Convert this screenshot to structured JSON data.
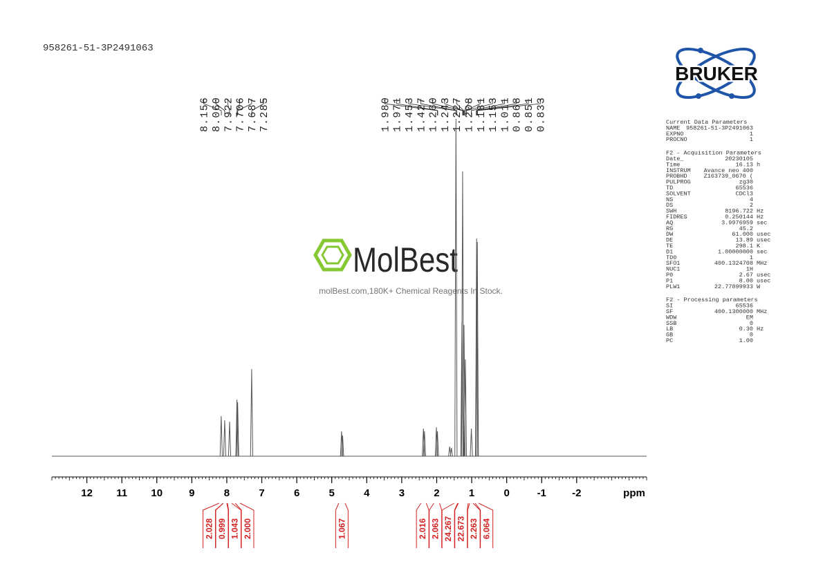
{
  "title": "958261-51-3P2491063",
  "logo": "BRUKER",
  "watermark": {
    "brand": "MolBest",
    "caption": "molBest.com,180K+ Chemical Reagents In Stock."
  },
  "chart_data": {
    "type": "nmr",
    "x_label": "ppm",
    "xlim": [
      13,
      -4
    ],
    "xticks": [
      12,
      11,
      10,
      9,
      8,
      7,
      6,
      5,
      4,
      3,
      2,
      1,
      0,
      -1,
      -2
    ],
    "ylim": [
      0,
      500
    ],
    "color": "#555555",
    "x": [
      8.16,
      8.06,
      7.92,
      7.71,
      7.69,
      7.29,
      4.72,
      4.69,
      2.38,
      2.35,
      2.01,
      1.98,
      1.63,
      1.58,
      1.45,
      1.28,
      1.26,
      1.22,
      1.18,
      1.01,
      0.86,
      0.84
    ],
    "values": [
      58,
      52,
      50,
      82,
      78,
      126,
      36,
      30,
      40,
      36,
      42,
      36,
      14,
      12,
      488,
      195,
      412,
      190,
      140,
      40,
      315,
      310
    ],
    "peak_labels": [
      {
        "value": 8.156,
        "label": "8.156"
      },
      {
        "value": 8.06,
        "label": "8.060"
      },
      {
        "value": 7.922,
        "label": "7.922"
      },
      {
        "value": 7.706,
        "label": "7.706"
      },
      {
        "value": 7.687,
        "label": "7.687"
      },
      {
        "value": 7.285,
        "label": "7.285"
      },
      {
        "value": 1.98,
        "label": "1.980"
      },
      {
        "value": 1.971,
        "label": "1.971"
      },
      {
        "value": 1.453,
        "label": "1.453"
      },
      {
        "value": 1.427,
        "label": "1.427"
      },
      {
        "value": 1.26,
        "label": "1.260"
      },
      {
        "value": 1.243,
        "label": "1.243"
      },
      {
        "value": 1.227,
        "label": "1.227"
      },
      {
        "value": 1.208,
        "label": "1.208"
      },
      {
        "value": 1.181,
        "label": "1.181"
      },
      {
        "value": 1.153,
        "label": "1.153"
      },
      {
        "value": 1.011,
        "label": "1.011"
      },
      {
        "value": 0.868,
        "label": "0.868"
      },
      {
        "value": 0.851,
        "label": "0.851"
      },
      {
        "value": 0.833,
        "label": "0.833"
      }
    ],
    "integral_color": "#d42020",
    "integrals": [
      {
        "value": 2.028,
        "label": "2.028",
        "range": [
          8.22,
          8.1
        ]
      },
      {
        "value": 0.999,
        "label": "0.999",
        "range": [
          8.1,
          8.0
        ]
      },
      {
        "value": 1.043,
        "label": "1.043",
        "range": [
          7.98,
          7.86
        ]
      },
      {
        "value": 2,
        "label": "2.000",
        "range": [
          7.76,
          7.62
        ]
      },
      {
        "value": 1.067,
        "label": "1.067",
        "range": [
          4.8,
          4.62
        ]
      },
      {
        "value": 2.016,
        "label": "2.016",
        "range": [
          2.45,
          2.3
        ]
      },
      {
        "value": 2.063,
        "label": "2.063",
        "range": [
          2.08,
          1.92
        ]
      },
      {
        "value": 24.267,
        "label": "24.267",
        "range": [
          1.5,
          1.4
        ]
      },
      {
        "value": 22.673,
        "label": "22.673",
        "range": [
          1.38,
          1.1
        ]
      },
      {
        "value": 2.263,
        "label": "2.263",
        "range": [
          1.06,
          0.96
        ]
      },
      {
        "value": 6.064,
        "label": "6.064",
        "range": [
          0.9,
          0.8
        ]
      }
    ]
  },
  "parameters": [
    {
      "title": "Current Data Parameters",
      "rows": [
        [
          "NAME",
          "958261-51-3P2491063"
        ],
        [
          "EXPNO",
          "1"
        ],
        [
          "PROCNO",
          "1"
        ]
      ]
    },
    {
      "title": "F2 - Acquisition Parameters",
      "rows": [
        [
          "Date_",
          "20230105"
        ],
        [
          "Time",
          "16.13",
          "h"
        ],
        [
          "INSTRUM",
          "Avance neo 400"
        ],
        [
          "PROBHD",
          "Z163739_0670 ("
        ],
        [
          "PULPROG",
          "zg30"
        ],
        [
          "TD",
          "65536"
        ],
        [
          "SOLVENT",
          "CDCl3"
        ],
        [
          "NS",
          "4"
        ],
        [
          "DS",
          "2"
        ],
        [
          "SWH",
          "8196.722",
          "Hz"
        ],
        [
          "FIDRES",
          "0.250144",
          "Hz"
        ],
        [
          "AQ",
          "3.9976959",
          "sec"
        ],
        [
          "RG",
          "45.2"
        ],
        [
          "DW",
          "61.000",
          "usec"
        ],
        [
          "DE",
          "13.89",
          "usec"
        ],
        [
          "TE",
          "298.1",
          "K"
        ],
        [
          "D1",
          "1.00000000",
          "sec"
        ],
        [
          "TD0",
          "1"
        ],
        [
          "SFO1",
          "400.1324708",
          "MHz"
        ],
        [
          "NUC1",
          "1H"
        ],
        [
          "P0",
          "2.67",
          "usec"
        ],
        [
          "P1",
          "8.00",
          "usec"
        ],
        [
          "PLW1",
          "22.77899933",
          "W"
        ]
      ]
    },
    {
      "title": "F2 - Processing parameters",
      "rows": [
        [
          "SI",
          "65536"
        ],
        [
          "SF",
          "400.1300000",
          "MHz"
        ],
        [
          "WDW",
          "EM"
        ],
        [
          "SSB",
          "0"
        ],
        [
          "LB",
          "0.30",
          "Hz"
        ],
        [
          "GB",
          "0"
        ],
        [
          "PC",
          "1.00"
        ]
      ]
    }
  ]
}
